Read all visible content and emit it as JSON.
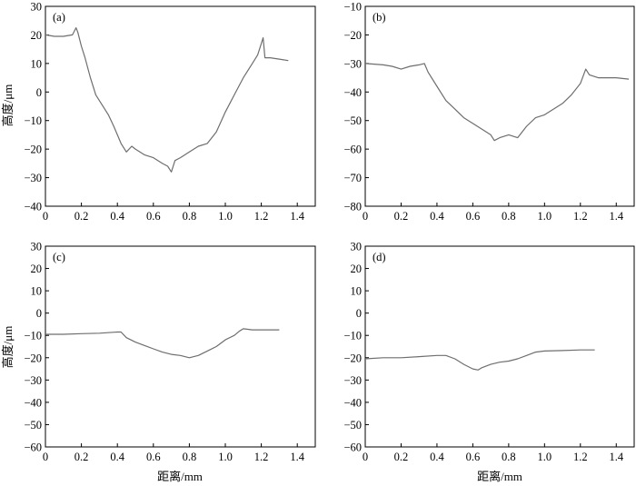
{
  "figure": {
    "xlabel": "距离/mm",
    "ylabel": "高度/μm"
  },
  "colors": {
    "line": "#6e6e6e",
    "axis": "#000000"
  },
  "chart_data": [
    {
      "type": "line",
      "label": "(a)",
      "xlim": [
        0,
        1.5
      ],
      "ylim": [
        -40,
        30
      ],
      "xticks": [
        0,
        0.2,
        0.4,
        0.6,
        0.8,
        1.0,
        1.2,
        1.4
      ],
      "xtick_labels": [
        "0",
        "0.2",
        "0.4",
        "0.6",
        "0.8",
        "1.0",
        "1.2",
        "1.4"
      ],
      "yticks": [
        -40,
        -30,
        -20,
        -10,
        0,
        10,
        20,
        30
      ],
      "ytick_labels": [
        "−40",
        "−30",
        "−20",
        "−10",
        "0",
        "10",
        "20",
        "30"
      ],
      "series": [
        {
          "x": [
            0,
            0.05,
            0.1,
            0.15,
            0.17,
            0.18,
            0.2,
            0.22,
            0.25,
            0.28,
            0.31,
            0.35,
            0.38,
            0.4,
            0.42,
            0.45,
            0.48,
            0.5,
            0.55,
            0.6,
            0.65,
            0.68,
            0.7,
            0.72,
            0.75,
            0.8,
            0.85,
            0.9,
            0.95,
            1.0,
            1.05,
            1.1,
            1.15,
            1.18,
            1.2,
            1.21,
            1.22,
            1.25,
            1.3,
            1.35
          ],
          "y": [
            20,
            19.5,
            19.5,
            20,
            22.5,
            21,
            16,
            12,
            5,
            -1,
            -4,
            -8,
            -12,
            -15,
            -18,
            -21,
            -19,
            -20,
            -22,
            -23,
            -25,
            -26,
            -28,
            -24,
            -23,
            -21,
            -19,
            -18,
            -14,
            -7,
            -1,
            5,
            10,
            13,
            17,
            19,
            12,
            12,
            11.5,
            11
          ]
        }
      ]
    },
    {
      "type": "line",
      "label": "(b)",
      "xlim": [
        0,
        1.5
      ],
      "ylim": [
        -80,
        -10
      ],
      "xticks": [
        0,
        0.2,
        0.4,
        0.6,
        0.8,
        1.0,
        1.2,
        1.4
      ],
      "xtick_labels": [
        "0",
        "0.2",
        "0.4",
        "0.6",
        "0.8",
        "1.0",
        "1.2",
        "1.4"
      ],
      "yticks": [
        -80,
        -70,
        -60,
        -50,
        -40,
        -30,
        -20,
        -10
      ],
      "ytick_labels": [
        "−80",
        "−70",
        "−60",
        "−50",
        "−40",
        "−30",
        "−20",
        "−10"
      ],
      "series": [
        {
          "x": [
            0,
            0.1,
            0.15,
            0.2,
            0.25,
            0.3,
            0.33,
            0.35,
            0.4,
            0.45,
            0.5,
            0.55,
            0.6,
            0.65,
            0.7,
            0.72,
            0.75,
            0.8,
            0.85,
            0.9,
            0.95,
            1.0,
            1.05,
            1.1,
            1.15,
            1.2,
            1.23,
            1.25,
            1.3,
            1.4,
            1.47
          ],
          "y": [
            -30,
            -30.5,
            -31,
            -32,
            -31,
            -30.5,
            -30,
            -33,
            -38,
            -43,
            -46,
            -49,
            -51,
            -53,
            -55,
            -57,
            -56,
            -55,
            -56,
            -52,
            -49,
            -48,
            -46,
            -44,
            -41,
            -37,
            -32,
            -34,
            -35,
            -35,
            -35.5
          ]
        }
      ]
    },
    {
      "type": "line",
      "label": "(c)",
      "xlim": [
        0,
        1.5
      ],
      "ylim": [
        -60,
        30
      ],
      "xticks": [
        0,
        0.2,
        0.4,
        0.6,
        0.8,
        1.0,
        1.2,
        1.4
      ],
      "xtick_labels": [
        "0",
        "0.2",
        "0.4",
        "0.6",
        "0.8",
        "1.0",
        "1.2",
        "1.4"
      ],
      "yticks": [
        -60,
        -50,
        -40,
        -30,
        -20,
        -10,
        0,
        10,
        20,
        30
      ],
      "ytick_labels": [
        "−60",
        "−50",
        "−40",
        "−30",
        "−20",
        "−10",
        "0",
        "10",
        "20",
        "30"
      ],
      "series": [
        {
          "x": [
            0,
            0.1,
            0.2,
            0.3,
            0.4,
            0.42,
            0.45,
            0.5,
            0.55,
            0.6,
            0.65,
            0.7,
            0.75,
            0.8,
            0.85,
            0.9,
            0.95,
            1.0,
            1.05,
            1.08,
            1.1,
            1.15,
            1.2,
            1.3
          ],
          "y": [
            -9.5,
            -9.5,
            -9.2,
            -9,
            -8.5,
            -8.5,
            -11,
            -13,
            -14.5,
            -16,
            -17.5,
            -18.5,
            -19,
            -20,
            -19,
            -17,
            -15,
            -12,
            -10,
            -8,
            -7,
            -7.5,
            -7.5,
            -7.5
          ]
        }
      ]
    },
    {
      "type": "line",
      "label": "(d)",
      "xlim": [
        0,
        1.5
      ],
      "ylim": [
        -60,
        30
      ],
      "xticks": [
        0,
        0.2,
        0.4,
        0.6,
        0.8,
        1.0,
        1.2,
        1.4
      ],
      "xtick_labels": [
        "0",
        "0.2",
        "0.4",
        "0.6",
        "0.8",
        "1.0",
        "1.2",
        "1.4"
      ],
      "yticks": [
        -60,
        -50,
        -40,
        -30,
        -20,
        -10,
        0,
        10,
        20,
        30
      ],
      "ytick_labels": [
        "−60",
        "−50",
        "−40",
        "−30",
        "−20",
        "−10",
        "0",
        "10",
        "20",
        "30"
      ],
      "series": [
        {
          "x": [
            0,
            0.1,
            0.2,
            0.3,
            0.4,
            0.45,
            0.5,
            0.55,
            0.6,
            0.63,
            0.65,
            0.7,
            0.75,
            0.8,
            0.85,
            0.9,
            0.95,
            1.0,
            1.1,
            1.2,
            1.28
          ],
          "y": [
            -20.5,
            -20,
            -20,
            -19.5,
            -19,
            -19,
            -20.5,
            -23,
            -25,
            -25.5,
            -24.5,
            -23,
            -22,
            -21.5,
            -20.5,
            -19,
            -17.5,
            -17,
            -16.8,
            -16.5,
            -16.5
          ]
        }
      ]
    }
  ]
}
